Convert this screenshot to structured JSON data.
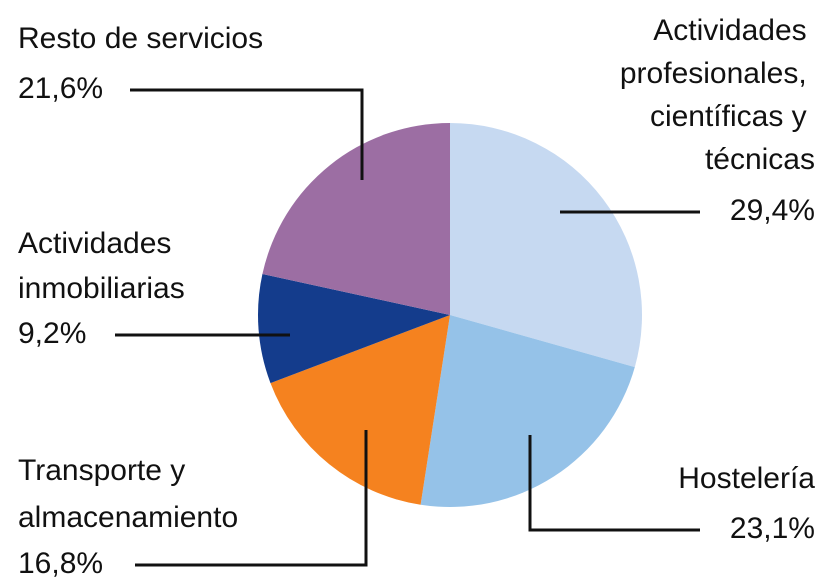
{
  "chart_data": {
    "type": "pie",
    "categories": [
      "Actividades profesionales, científicas y técnicas",
      "Hostelería",
      "Transporte y almacenamiento",
      "Actividades inmobiliarias",
      "Resto de servicios"
    ],
    "values": [
      29.4,
      23.1,
      16.8,
      9.2,
      21.6
    ],
    "value_labels": [
      "29,4%",
      "23,1%",
      "16,8%",
      "9,2%",
      "21,6%"
    ],
    "colors": [
      "#c6d9f1",
      "#95c2e8",
      "#f5821f",
      "#143c8c",
      "#9c6ea3"
    ]
  }
}
